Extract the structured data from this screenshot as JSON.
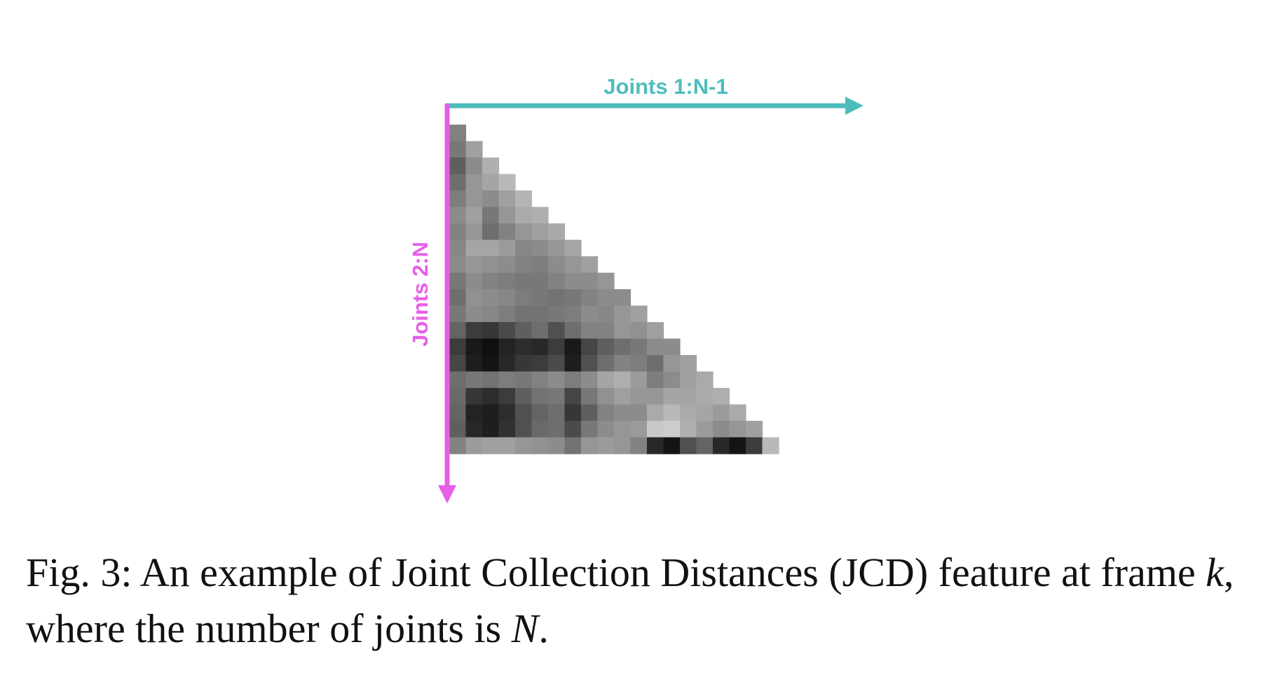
{
  "figure": {
    "top_axis": {
      "label": "Joints 1:N-1",
      "color": "#4fbcbc"
    },
    "left_axis": {
      "label": "Joints 2:N",
      "color": "#e85ee8"
    },
    "matrix": {
      "description_levels": "grayscale intensity 0-255 per cell, lower-triangular",
      "rows": [
        [
          130
        ],
        [
          120,
          160
        ],
        [
          95,
          140,
          175
        ],
        [
          110,
          150,
          165,
          185
        ],
        [
          125,
          150,
          140,
          160,
          180
        ],
        [
          140,
          160,
          120,
          150,
          170,
          175
        ],
        [
          130,
          150,
          110,
          130,
          150,
          160,
          170
        ],
        [
          135,
          165,
          165,
          155,
          135,
          140,
          150,
          165
        ],
        [
          140,
          150,
          145,
          140,
          130,
          125,
          140,
          150,
          160
        ],
        [
          120,
          140,
          130,
          125,
          120,
          120,
          130,
          140,
          140,
          150
        ],
        [
          110,
          145,
          140,
          135,
          125,
          120,
          115,
          120,
          130,
          140,
          140
        ],
        [
          120,
          140,
          135,
          125,
          115,
          115,
          120,
          125,
          140,
          135,
          150,
          160
        ],
        [
          100,
          60,
          55,
          75,
          95,
          110,
          80,
          110,
          130,
          130,
          150,
          145,
          160
        ],
        [
          60,
          25,
          15,
          35,
          45,
          40,
          60,
          25,
          70,
          95,
          110,
          120,
          140,
          140
        ],
        [
          70,
          30,
          20,
          40,
          55,
          60,
          75,
          30,
          80,
          110,
          130,
          125,
          110,
          150,
          160
        ],
        [
          110,
          120,
          115,
          125,
          120,
          130,
          140,
          125,
          140,
          165,
          175,
          155,
          125,
          140,
          160,
          170
        ],
        [
          105,
          55,
          45,
          60,
          95,
          115,
          120,
          70,
          120,
          145,
          160,
          150,
          150,
          165,
          165,
          170,
          175
        ],
        [
          100,
          35,
          30,
          45,
          80,
          100,
          110,
          55,
          95,
          130,
          140,
          140,
          170,
          185,
          170,
          165,
          155,
          170
        ],
        [
          95,
          40,
          30,
          50,
          80,
          105,
          110,
          75,
          120,
          140,
          150,
          155,
          200,
          205,
          175,
          155,
          140,
          150,
          160
        ],
        [
          130,
          155,
          160,
          160,
          150,
          145,
          140,
          115,
          150,
          155,
          150,
          130,
          40,
          20,
          80,
          100,
          40,
          20,
          60,
          185
        ]
      ]
    }
  },
  "caption": {
    "prefix": "Fig. 3: An example of Joint Collection Distances (JCD) feature at frame ",
    "var_k": "k",
    "middle": ", where the number of joints is ",
    "var_N": "N",
    "suffix": "."
  }
}
